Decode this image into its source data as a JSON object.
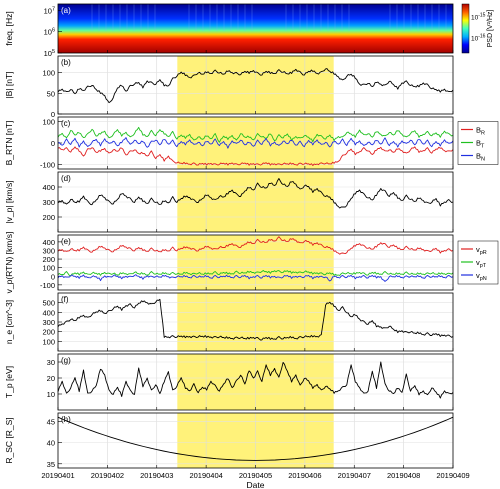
{
  "figure": {
    "xlabel": "Date",
    "x_ticks": [
      "20190401",
      "20190402",
      "20190403",
      "20190404",
      "20190405",
      "20190406",
      "20190407",
      "20190408",
      "20190409"
    ],
    "highlight": {
      "color": "#fff27a",
      "start": "2019-04-03 10:00",
      "end": "2019-04-06 14:00"
    }
  },
  "chart_data": [
    {
      "panel": "a",
      "type": "heatmap",
      "label": "(a)",
      "ylabel": "freq. [Hz]",
      "yscale": "log",
      "ylim": [
        100000,
        20000000
      ],
      "y_ticks": [
        "10^5",
        "10^6",
        "10^7"
      ],
      "colorbar": {
        "label": "PSD [V²/Hz]",
        "ticks": [
          "10^-15",
          "10^-16"
        ],
        "colors": [
          "#00008f",
          "#0000ff",
          "#00b0ff",
          "#40ffbf",
          "#ffff00",
          "#ff6000",
          "#b00000"
        ]
      }
    },
    {
      "panel": "b",
      "type": "line",
      "label": "(b)",
      "ylabel": "|B| [nT]",
      "ylim": [
        0,
        140
      ],
      "y_ticks": [
        0,
        50,
        100
      ],
      "series": [
        {
          "color": "#000000",
          "values": [
            55,
            60,
            52,
            60,
            48,
            62,
            57,
            65,
            70,
            58,
            52,
            45,
            25,
            40,
            62,
            70,
            55,
            67,
            73,
            75,
            65,
            80,
            75,
            72,
            82,
            70,
            68,
            85,
            92,
            100,
            95,
            88,
            92,
            100,
            95,
            102,
            98,
            104,
            100,
            95,
            105,
            100,
            98,
            96,
            102,
            100,
            105,
            98,
            95,
            102,
            100,
            98,
            105,
            102,
            96,
            100,
            108,
            100,
            95,
            102,
            105,
            98,
            100,
            110,
            102,
            98,
            90,
            80,
            92,
            95,
            88,
            72,
            70,
            75,
            65,
            78,
            72,
            68,
            80,
            70,
            62,
            75,
            78,
            70,
            65,
            68,
            75,
            70,
            62,
            58,
            55,
            60,
            52,
            58
          ]
        }
      ]
    },
    {
      "panel": "c",
      "type": "line",
      "label": "(c)",
      "ylabel": "B_RTN [nT]",
      "ylim": [
        -120,
        120
      ],
      "y_ticks": [
        -100,
        0,
        100
      ],
      "series": [
        {
          "name": "B_R",
          "color": "#e02020",
          "values": [
            -20,
            -30,
            -25,
            -40,
            -20,
            -35,
            -60,
            -30,
            -20,
            -45,
            -35,
            -25,
            -50,
            -30,
            -40,
            -20,
            -55,
            -40,
            -30,
            -50,
            -45,
            -60,
            -40,
            -70,
            -55,
            -80,
            -60,
            -85,
            -90,
            -95,
            -92,
            -98,
            -95,
            -100,
            -96,
            -98,
            -94,
            -100,
            -97,
            -95,
            -98,
            -92,
            -100,
            -96,
            -94,
            -99,
            -95,
            -100,
            -97,
            -93,
            -98,
            -96,
            -100,
            -95,
            -98,
            -94,
            -100,
            -96,
            -95,
            -98,
            -100,
            -97,
            -95,
            -93,
            -98,
            -90,
            -85,
            -60,
            -45,
            -30,
            -50,
            -40,
            -25,
            -35,
            -55,
            -30,
            -20,
            -40,
            -30,
            -45,
            -25,
            -35,
            -50,
            -30,
            -20,
            -40,
            -35,
            -25,
            -45,
            -30,
            -20,
            -35,
            -40,
            -30
          ]
        },
        {
          "name": "B_T",
          "color": "#20c020",
          "values": [
            30,
            45,
            20,
            60,
            35,
            50,
            25,
            40,
            65,
            30,
            45,
            55,
            20,
            40,
            60,
            35,
            50,
            25,
            45,
            70,
            40,
            30,
            55,
            35,
            60,
            45,
            30,
            50,
            20,
            35,
            25,
            40,
            10,
            30,
            15,
            35,
            20,
            40,
            5,
            30,
            20,
            35,
            10,
            45,
            25,
            30,
            15,
            40,
            30,
            20,
            45,
            10,
            35,
            25,
            40,
            15,
            30,
            20,
            35,
            25,
            10,
            40,
            30,
            20,
            35,
            15,
            30,
            25,
            50,
            40,
            30,
            60,
            35,
            45,
            25,
            55,
            40,
            30,
            50,
            35,
            60,
            40,
            25,
            45,
            55,
            30,
            40,
            50,
            35,
            45,
            30,
            55,
            40,
            35
          ]
        },
        {
          "name": "B_N",
          "color": "#2030e0",
          "values": [
            5,
            -10,
            15,
            -5,
            20,
            -15,
            10,
            -20,
            5,
            15,
            -10,
            20,
            -5,
            10,
            -15,
            5,
            25,
            -10,
            15,
            -5,
            10,
            -20,
            5,
            15,
            -10,
            20,
            -5,
            10,
            -15,
            5,
            -5,
            15,
            -10,
            5,
            -15,
            10,
            -5,
            15,
            -10,
            5,
            -20,
            10,
            -5,
            15,
            -10,
            5,
            -15,
            10,
            -5,
            20,
            -10,
            5,
            -15,
            10,
            -5,
            15,
            -10,
            5,
            -15,
            10,
            -5,
            15,
            -10,
            5,
            -20,
            10,
            -5,
            15,
            -10,
            20,
            -5,
            10,
            -15,
            5,
            -10,
            15,
            -5,
            20,
            -10,
            5,
            -15,
            10,
            -5,
            15,
            -10,
            20,
            -5,
            10,
            -15,
            5,
            -10,
            15,
            -5,
            10
          ]
        }
      ]
    },
    {
      "panel": "d",
      "type": "line",
      "label": "(d)",
      "ylabel": "|v_p| [km/s]",
      "ylim": [
        100,
        500
      ],
      "y_ticks": [
        200,
        300,
        400
      ],
      "series": [
        {
          "color": "#000000",
          "values": [
            300,
            310,
            280,
            320,
            295,
            305,
            340,
            300,
            285,
            310,
            350,
            330,
            300,
            290,
            315,
            360,
            340,
            320,
            300,
            330,
            310,
            290,
            320,
            300,
            280,
            310,
            295,
            330,
            300,
            320,
            340,
            330,
            310,
            300,
            320,
            350,
            330,
            310,
            340,
            330,
            360,
            380,
            350,
            340,
            370,
            400,
            380,
            420,
            400,
            390,
            430,
            410,
            450,
            420,
            400,
            440,
            420,
            380,
            410,
            400,
            370,
            390,
            360,
            340,
            330,
            300,
            270,
            260,
            280,
            320,
            360,
            380,
            350,
            330,
            310,
            350,
            390,
            370,
            340,
            360,
            330,
            310,
            340,
            320,
            300,
            330,
            310,
            290,
            300,
            320,
            280,
            300,
            310,
            300
          ]
        }
      ]
    },
    {
      "panel": "e",
      "type": "line",
      "label": "(e)",
      "ylabel": "v_p(RTN) [km/s]",
      "ylim": [
        -160,
        480
      ],
      "y_ticks": [
        -100,
        0,
        100,
        200,
        300,
        400
      ],
      "series": [
        {
          "name": "v_pR",
          "color": "#e02020",
          "values": [
            300,
            310,
            280,
            320,
            295,
            305,
            340,
            300,
            285,
            310,
            350,
            330,
            300,
            290,
            315,
            360,
            340,
            320,
            300,
            330,
            310,
            290,
            320,
            300,
            280,
            310,
            295,
            330,
            300,
            320,
            340,
            330,
            310,
            300,
            320,
            350,
            330,
            310,
            340,
            330,
            360,
            380,
            350,
            340,
            370,
            400,
            380,
            420,
            400,
            390,
            430,
            410,
            450,
            420,
            400,
            440,
            420,
            380,
            410,
            400,
            370,
            390,
            360,
            340,
            330,
            300,
            270,
            260,
            280,
            320,
            360,
            380,
            350,
            330,
            310,
            350,
            390,
            370,
            340,
            360,
            330,
            310,
            340,
            320,
            300,
            330,
            310,
            290,
            300,
            320,
            280,
            300,
            310,
            300
          ]
        },
        {
          "name": "v_pT",
          "color": "#20c020",
          "values": [
            30,
            20,
            45,
            10,
            35,
            25,
            50,
            15,
            40,
            30,
            20,
            45,
            25,
            35,
            10,
            40,
            30,
            20,
            50,
            25,
            35,
            15,
            45,
            30,
            20,
            40,
            25,
            35,
            30,
            20,
            45,
            30,
            25,
            40,
            20,
            35,
            30,
            45,
            25,
            40,
            35,
            30,
            50,
            40,
            35,
            55,
            45,
            40,
            60,
            50,
            45,
            65,
            55,
            50,
            60,
            45,
            50,
            40,
            55,
            45,
            35,
            40,
            30,
            25,
            35,
            20,
            15,
            30,
            40,
            25,
            35,
            45,
            30,
            20,
            40,
            35,
            25,
            45,
            30,
            20,
            35,
            25,
            40,
            30,
            20,
            35,
            25,
            30,
            40,
            20,
            35,
            30,
            25,
            40
          ]
        },
        {
          "name": "v_pN",
          "color": "#2030e0",
          "values": [
            -10,
            5,
            -20,
            10,
            -5,
            -15,
            15,
            -25,
            0,
            -10,
            -40,
            5,
            -15,
            10,
            -5,
            -20,
            0,
            -10,
            15,
            -5,
            -25,
            5,
            -10,
            0,
            -15,
            10,
            -5,
            -20,
            0,
            -10,
            5,
            -15,
            0,
            -5,
            -10,
            5,
            -20,
            0,
            -10,
            -5,
            5,
            -15,
            0,
            -10,
            5,
            -20,
            -5,
            0,
            -15,
            5,
            -10,
            0,
            -20,
            -5,
            5,
            -15,
            0,
            -10,
            -5,
            5,
            -20,
            0,
            -10,
            -5,
            -60,
            5,
            -15,
            0,
            -10,
            5,
            -20,
            -5,
            0,
            -15,
            5,
            -10,
            -5,
            -70,
            0,
            -10,
            5,
            -15,
            -5,
            0,
            -10,
            5,
            -20,
            0,
            -5,
            -10,
            5,
            -15,
            0,
            -5
          ]
        }
      ]
    },
    {
      "panel": "f",
      "type": "line",
      "label": "(f)",
      "ylabel": "n_e [cm^-3]",
      "ylim": [
        0,
        600
      ],
      "y_ticks": [
        100,
        200,
        300,
        400,
        500
      ],
      "series": [
        {
          "color": "#000000",
          "values": [
            260,
            280,
            300,
            330,
            310,
            350,
            370,
            340,
            380,
            400,
            420,
            390,
            410,
            440,
            460,
            430,
            470,
            480,
            450,
            490,
            520,
            500,
            480,
            510,
            530,
            150,
            145,
            150,
            148,
            150,
            147,
            150,
            145,
            150,
            148,
            150,
            145,
            140,
            150,
            135,
            140,
            130,
            135,
            140,
            125,
            135,
            140,
            130,
            120,
            135,
            130,
            125,
            140,
            130,
            135,
            145,
            130,
            140,
            150,
            145,
            155,
            150,
            160,
            480,
            500,
            470,
            420,
            450,
            400,
            350,
            380,
            330,
            300,
            280,
            310,
            260,
            250,
            230,
            260,
            220,
            200,
            210,
            190,
            200,
            180,
            190,
            170,
            180,
            165,
            175,
            160,
            165,
            155,
            150
          ]
        }
      ]
    },
    {
      "panel": "g",
      "type": "line",
      "label": "(g)",
      "ylabel": "T_p [eV]",
      "ylim": [
        0,
        35
      ],
      "y_ticks": [
        10,
        20,
        30
      ],
      "series": [
        {
          "color": "#000000",
          "values": [
            12,
            18,
            10,
            14,
            20,
            12,
            25,
            10,
            12,
            15,
            26,
            22,
            12,
            10,
            14,
            9,
            18,
            12,
            10,
            26,
            15,
            20,
            12,
            16,
            10,
            18,
            24,
            12,
            15,
            20,
            14,
            12,
            16,
            11,
            14,
            13,
            18,
            15,
            12,
            16,
            20,
            14,
            18,
            22,
            16,
            25,
            20,
            24,
            18,
            28,
            22,
            26,
            20,
            30,
            24,
            18,
            22,
            15,
            20,
            18,
            14,
            16,
            12,
            15,
            13,
            11,
            12,
            14,
            16,
            28,
            18,
            14,
            10,
            12,
            24,
            14,
            30,
            16,
            12,
            10,
            14,
            11,
            22,
            12,
            15,
            10,
            12,
            9,
            14,
            11,
            8,
            12,
            10,
            11
          ]
        }
      ]
    },
    {
      "panel": "h",
      "type": "line",
      "label": "(h)",
      "ylabel": "R_SC [R_S]",
      "ylim": [
        34,
        47
      ],
      "y_ticks": [
        35,
        40,
        45
      ],
      "series": [
        {
          "color": "#000000",
          "formula": "parabola",
          "start": 46,
          "min": 35.8,
          "min_at": 0.5,
          "end": 46
        }
      ]
    }
  ]
}
